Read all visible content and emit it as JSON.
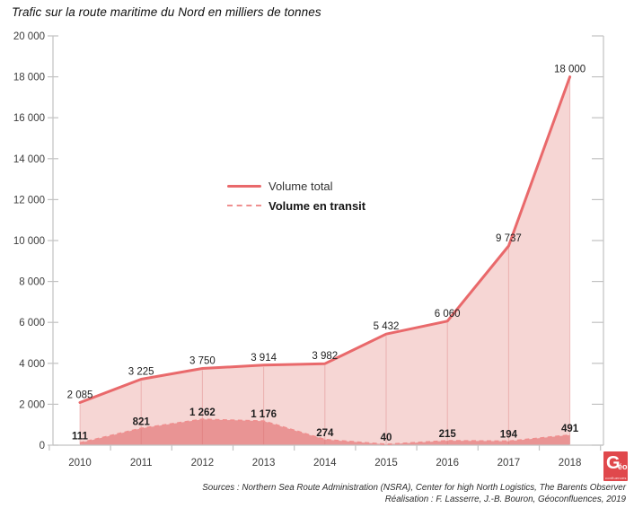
{
  "title": "Trafic sur la route maritime du Nord en milliers de tonnes",
  "chart_data": {
    "type": "area",
    "title": "Trafic sur la route maritime du Nord en milliers de tonnes",
    "x": [
      2010,
      2011,
      2012,
      2013,
      2014,
      2015,
      2016,
      2017,
      2018
    ],
    "series": [
      {
        "name": "Volume total",
        "style": "solid-line-area",
        "values": [
          2085,
          3225,
          3750,
          3914,
          3982,
          5432,
          6060,
          9737,
          18000
        ]
      },
      {
        "name": "Volume en transit",
        "style": "dashed-line-area",
        "values": [
          111,
          821,
          1262,
          1176,
          274,
          40,
          215,
          194,
          491
        ]
      }
    ],
    "xlabel": "",
    "ylabel": "",
    "ylim": [
      0,
      20000
    ],
    "ytick_step": 2000,
    "grid": "vertical-lines-inside-area-only",
    "legend_position": "inside-center-left",
    "data_labels": true,
    "number_format": "space-thousands"
  },
  "palette": {
    "total_line": "#e9696b",
    "total_fill": "#f6d6d4",
    "transit_line": "#ef8f8f",
    "transit_fill": "#e99494",
    "grid_line": "rgba(214,106,106,0.35)",
    "axis_line": "#c2c2c2",
    "tick_text": "#3c3c3c",
    "label_text": "#1f1f1f",
    "logo_red": "#e0484c"
  },
  "footer": {
    "sources": "Sources : Northern Sea Route Administration (NSRA), Center for high North Logistics, The Barents Observer",
    "realisation": "Réalisation : F. Lasserre, J.-B. Bouron, Géoconfluences, 2019"
  },
  "logo": {
    "letter": "G",
    "accent": "éo",
    "word": "confluences"
  }
}
